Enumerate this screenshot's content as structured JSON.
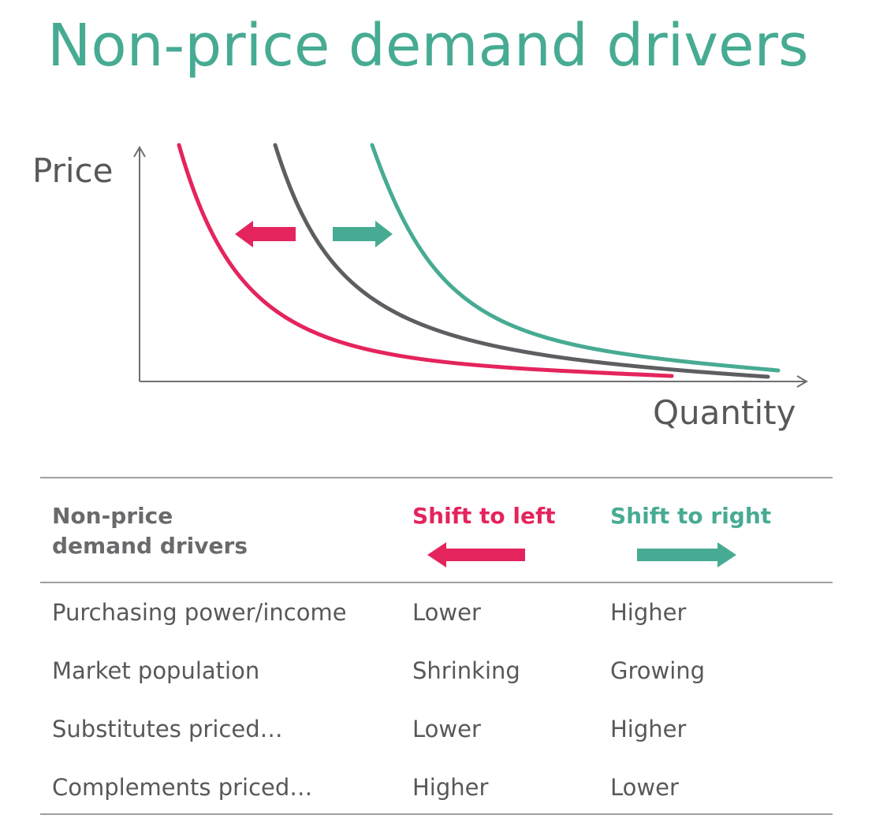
{
  "title": "Non-price demand drivers",
  "graph": {
    "y_axis_label": "Price",
    "x_axis_label": "Quantity",
    "curves": [
      {
        "role": "shift-left",
        "color": "#e4245c"
      },
      {
        "role": "original",
        "color": "#5e5e62"
      },
      {
        "role": "shift-right",
        "color": "#47ab93"
      }
    ]
  },
  "table": {
    "header": {
      "drivers": "Non-price\ndemand drivers",
      "left": "Shift to left",
      "right": "Shift to right"
    },
    "rows": [
      {
        "driver": "Purchasing power/income",
        "left": "Lower",
        "right": "Higher"
      },
      {
        "driver": "Market population",
        "left": "Shrinking",
        "right": "Growing"
      },
      {
        "driver": "Substitutes priced…",
        "left": "Lower",
        "right": "Higher"
      },
      {
        "driver": "Complements priced…",
        "left": "Higher",
        "right": "Lower"
      }
    ]
  },
  "colors": {
    "title": "#47ab93",
    "left": "#e4245c",
    "right": "#47ab93",
    "original": "#5e5e62",
    "axis": "#6f6f72"
  }
}
